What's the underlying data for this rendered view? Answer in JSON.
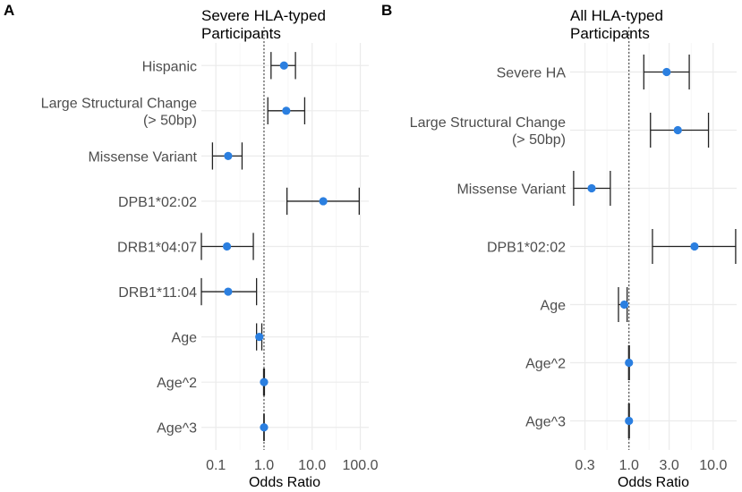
{
  "chart_data": [
    {
      "panel": "A",
      "type": "forest",
      "title_lines": [
        "Severe HLA-typed",
        "Participants"
      ],
      "xlabel": "Odds Ratio",
      "xscale": "log10",
      "xlim": [
        0.05,
        150
      ],
      "xticks": [
        {
          "value": 0.1,
          "label": "0.1"
        },
        {
          "value": 1,
          "label": "1.0"
        },
        {
          "value": 10,
          "label": "10.0"
        },
        {
          "value": 100,
          "label": "100.0"
        }
      ],
      "reference_line": 1,
      "rows": [
        {
          "label_lines": [
            "Hispanic"
          ],
          "or": 2.6,
          "lo": 1.4,
          "hi": 4.5
        },
        {
          "label_lines": [
            "Large Structural Change",
            "(> 50bp)"
          ],
          "or": 2.9,
          "lo": 1.2,
          "hi": 7.0
        },
        {
          "label_lines": [
            "Missense Variant"
          ],
          "or": 0.18,
          "lo": 0.085,
          "hi": 0.35
        },
        {
          "label_lines": [
            "DPB1*02:02"
          ],
          "or": 17,
          "lo": 3.0,
          "hi": 95
        },
        {
          "label_lines": [
            "DRB1*04:07"
          ],
          "or": 0.17,
          "lo": 0.05,
          "hi": 0.6
        },
        {
          "label_lines": [
            "DRB1*11:04"
          ],
          "or": 0.18,
          "lo": 0.05,
          "hi": 0.7
        },
        {
          "label_lines": [
            "Age"
          ],
          "or": 0.8,
          "lo": 0.7,
          "hi": 0.9
        },
        {
          "label_lines": [
            "Age^2"
          ],
          "or": 1.0,
          "lo": 0.98,
          "hi": 1.02
        },
        {
          "label_lines": [
            "Age^3"
          ],
          "or": 1.0,
          "lo": 0.99,
          "hi": 1.01
        }
      ]
    },
    {
      "panel": "B",
      "type": "forest",
      "title_lines": [
        "All HLA-typed",
        "Participants"
      ],
      "xlabel": "Odds Ratio",
      "xscale": "log10",
      "xlim": [
        0.2,
        19
      ],
      "xticks": [
        {
          "value": 0.3,
          "label": "0.3"
        },
        {
          "value": 1,
          "label": "1.0"
        },
        {
          "value": 3,
          "label": "3.0"
        },
        {
          "value": 10,
          "label": "10.0"
        }
      ],
      "reference_line": 1,
      "rows": [
        {
          "label_lines": [
            "Severe HA"
          ],
          "or": 2.8,
          "lo": 1.5,
          "hi": 5.2
        },
        {
          "label_lines": [
            "Large Structural Change",
            "(> 50bp)"
          ],
          "or": 3.8,
          "lo": 1.8,
          "hi": 8.8
        },
        {
          "label_lines": [
            "Missense Variant"
          ],
          "or": 0.36,
          "lo": 0.22,
          "hi": 0.6
        },
        {
          "label_lines": [
            "DPB1*02:02"
          ],
          "or": 6.0,
          "lo": 1.9,
          "hi": 18.5
        },
        {
          "label_lines": [
            "Age"
          ],
          "or": 0.88,
          "lo": 0.75,
          "hi": 0.95
        },
        {
          "label_lines": [
            "Age^2"
          ],
          "or": 1.0,
          "lo": 0.99,
          "hi": 1.01
        },
        {
          "label_lines": [
            "Age^3"
          ],
          "or": 1.0,
          "lo": 0.99,
          "hi": 1.01
        }
      ]
    }
  ]
}
